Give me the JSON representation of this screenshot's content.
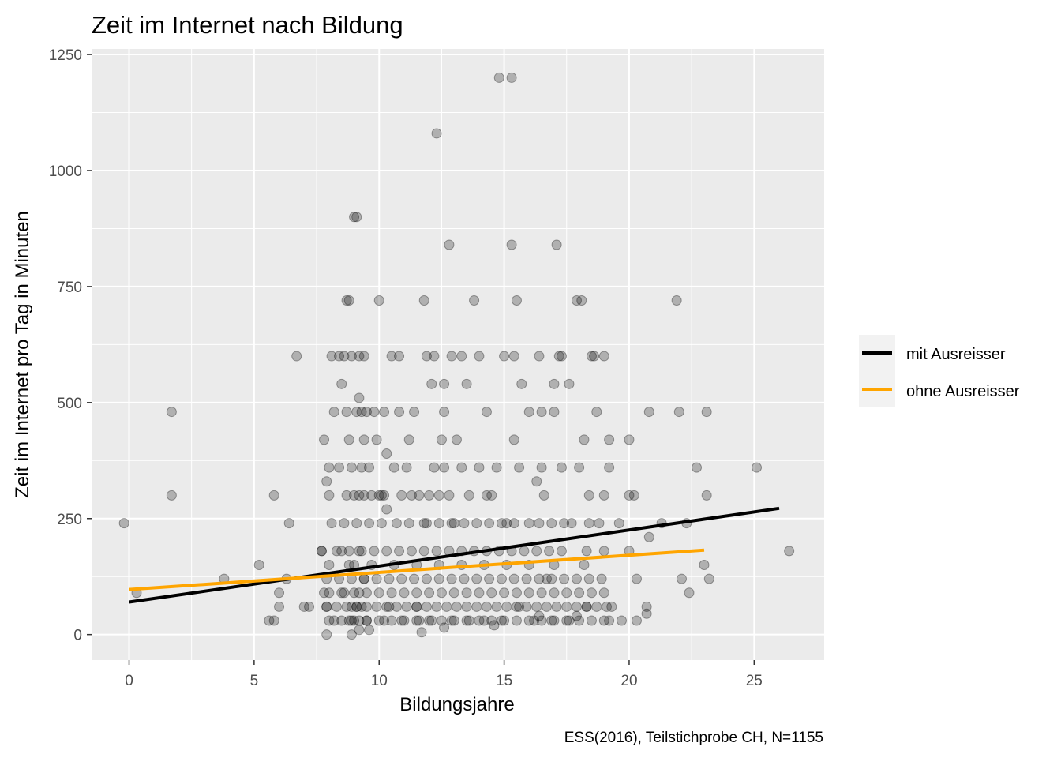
{
  "chart_data": {
    "type": "scatter",
    "title": "Zeit im Internet nach Bildung",
    "xlabel": "Bildungsjahre",
    "ylabel": "Zeit im Internet pro Tag in Minuten",
    "caption": "ESS(2016), Teilstichprobe CH, N=1155",
    "xlim": [
      -1.5,
      27.8
    ],
    "ylim": [
      -55,
      1262
    ],
    "x_ticks": [
      0,
      5,
      10,
      15,
      20,
      25
    ],
    "y_ticks": [
      0,
      250,
      500,
      750,
      1000,
      1250
    ],
    "x_tick_labels": [
      "0",
      "5",
      "10",
      "15",
      "20",
      "25"
    ],
    "y_tick_labels": [
      "0",
      "250",
      "500",
      "750",
      "1000",
      "1250"
    ],
    "grid": true,
    "legend_position": "right",
    "point_color": "#000000",
    "point_opacity": 0.25,
    "points": [
      [
        -0.2,
        240
      ],
      [
        1.7,
        480
      ],
      [
        1.7,
        300
      ],
      [
        0.3,
        90
      ],
      [
        3.8,
        120
      ],
      [
        5.2,
        150
      ],
      [
        5.8,
        300
      ],
      [
        6.4,
        240
      ],
      [
        6.7,
        600
      ],
      [
        6.3,
        120
      ],
      [
        5.6,
        30
      ],
      [
        5.8,
        30
      ],
      [
        6.0,
        90
      ],
      [
        6.0,
        60
      ],
      [
        7.0,
        60
      ],
      [
        7.2,
        60
      ],
      [
        7.7,
        180
      ],
      [
        7.8,
        420
      ],
      [
        7.9,
        330
      ],
      [
        8.0,
        300
      ],
      [
        8.0,
        360
      ],
      [
        7.8,
        90
      ],
      [
        7.9,
        60
      ],
      [
        7.9,
        0
      ],
      [
        8.2,
        480
      ],
      [
        8.4,
        360
      ],
      [
        8.5,
        180
      ],
      [
        8.5,
        540
      ],
      [
        8.6,
        600
      ],
      [
        8.7,
        720
      ],
      [
        8.8,
        720
      ],
      [
        8.9,
        600
      ],
      [
        9.0,
        900
      ],
      [
        9.1,
        900
      ],
      [
        9.2,
        510
      ],
      [
        9.2,
        600
      ],
      [
        9.4,
        600
      ],
      [
        9.5,
        480
      ],
      [
        9.8,
        480
      ],
      [
        9.9,
        420
      ],
      [
        10.0,
        720
      ],
      [
        10.1,
        300
      ],
      [
        10.3,
        390
      ],
      [
        10.3,
        270
      ],
      [
        10.4,
        60
      ],
      [
        10.5,
        600
      ],
      [
        10.8,
        480
      ],
      [
        11.2,
        420
      ],
      [
        11.5,
        60
      ],
      [
        11.8,
        720
      ],
      [
        11.9,
        600
      ],
      [
        12.1,
        540
      ],
      [
        12.2,
        600
      ],
      [
        12.3,
        1080
      ],
      [
        12.5,
        420
      ],
      [
        12.6,
        540
      ],
      [
        12.8,
        840
      ],
      [
        12.9,
        600
      ],
      [
        13.3,
        600
      ],
      [
        13.5,
        540
      ],
      [
        13.8,
        720
      ],
      [
        14.3,
        480
      ],
      [
        14.5,
        300
      ],
      [
        14.8,
        1200
      ],
      [
        15.0,
        600
      ],
      [
        15.3,
        1200
      ],
      [
        15.3,
        840
      ],
      [
        15.5,
        720
      ],
      [
        15.4,
        420
      ],
      [
        15.7,
        540
      ],
      [
        16.0,
        480
      ],
      [
        16.3,
        330
      ],
      [
        16.5,
        480
      ],
      [
        16.6,
        300
      ],
      [
        16.7,
        120
      ],
      [
        17.0,
        480
      ],
      [
        17.1,
        840
      ],
      [
        17.2,
        600
      ],
      [
        17.3,
        600
      ],
      [
        17.6,
        540
      ],
      [
        17.9,
        720
      ],
      [
        18.1,
        720
      ],
      [
        18.2,
        420
      ],
      [
        18.5,
        600
      ],
      [
        18.7,
        480
      ],
      [
        19.0,
        300
      ],
      [
        19.2,
        420
      ],
      [
        19.3,
        60
      ],
      [
        20.0,
        180
      ],
      [
        20.0,
        420
      ],
      [
        20.2,
        300
      ],
      [
        20.3,
        30
      ],
      [
        20.3,
        120
      ],
      [
        20.8,
        210
      ],
      [
        20.8,
        480
      ],
      [
        21.3,
        240
      ],
      [
        21.9,
        720
      ],
      [
        22.0,
        480
      ],
      [
        22.1,
        120
      ],
      [
        22.4,
        90
      ],
      [
        22.7,
        360
      ],
      [
        22.3,
        240
      ],
      [
        23.0,
        150
      ],
      [
        23.1,
        300
      ],
      [
        23.2,
        120
      ],
      [
        23.1,
        480
      ],
      [
        25.1,
        360
      ],
      [
        26.4,
        180
      ],
      [
        20.7,
        60
      ],
      [
        19.2,
        30
      ],
      [
        18.3,
        60
      ],
      [
        17.6,
        30
      ],
      [
        16.9,
        30
      ],
      [
        16.2,
        30
      ],
      [
        15.6,
        60
      ],
      [
        14.9,
        30
      ],
      [
        14.2,
        30
      ],
      [
        13.6,
        30
      ],
      [
        12.9,
        30
      ],
      [
        12.1,
        30
      ],
      [
        11.6,
        30
      ],
      [
        10.9,
        30
      ],
      [
        10.2,
        30
      ],
      [
        9.5,
        30
      ],
      [
        8.9,
        30
      ],
      [
        8.2,
        30
      ],
      [
        8.9,
        0
      ],
      [
        9.2,
        10
      ],
      [
        11.7,
        5
      ],
      [
        12.6,
        15
      ],
      [
        14.6,
        20
      ],
      [
        16.4,
        40
      ],
      [
        17.9,
        40
      ],
      [
        19.7,
        30
      ],
      [
        20.7,
        45
      ],
      [
        9.6,
        10
      ],
      [
        8.1,
        600
      ],
      [
        8.4,
        600
      ],
      [
        8.8,
        420
      ],
      [
        9.1,
        480
      ],
      [
        9.3,
        480
      ],
      [
        9.0,
        300
      ],
      [
        9.2,
        300
      ],
      [
        9.4,
        300
      ],
      [
        9.6,
        360
      ],
      [
        9.7,
        300
      ],
      [
        10.0,
        300
      ],
      [
        10.2,
        300
      ],
      [
        10.6,
        360
      ],
      [
        10.9,
        300
      ],
      [
        11.1,
        360
      ],
      [
        11.3,
        300
      ],
      [
        11.6,
        300
      ],
      [
        11.8,
        240
      ],
      [
        12.0,
        300
      ],
      [
        12.2,
        360
      ],
      [
        12.4,
        300
      ],
      [
        12.6,
        360
      ],
      [
        12.8,
        300
      ],
      [
        13.0,
        240
      ],
      [
        13.3,
        360
      ],
      [
        13.6,
        300
      ],
      [
        14.0,
        360
      ],
      [
        14.3,
        300
      ],
      [
        14.7,
        360
      ],
      [
        15.1,
        240
      ],
      [
        15.6,
        360
      ],
      [
        16.0,
        240
      ],
      [
        16.5,
        360
      ],
      [
        16.9,
        240
      ],
      [
        17.3,
        360
      ],
      [
        17.7,
        240
      ],
      [
        18.0,
        360
      ],
      [
        18.4,
        300
      ],
      [
        18.8,
        240
      ],
      [
        19.2,
        360
      ],
      [
        19.6,
        240
      ],
      [
        20.0,
        300
      ],
      [
        8.1,
        240
      ],
      [
        8.6,
        240
      ],
      [
        9.1,
        240
      ],
      [
        9.6,
        240
      ],
      [
        10.1,
        240
      ],
      [
        10.7,
        240
      ],
      [
        11.2,
        240
      ],
      [
        11.9,
        240
      ],
      [
        12.4,
        240
      ],
      [
        12.9,
        240
      ],
      [
        13.4,
        240
      ],
      [
        13.9,
        240
      ],
      [
        14.4,
        240
      ],
      [
        14.9,
        240
      ],
      [
        15.4,
        240
      ],
      [
        16.4,
        240
      ],
      [
        17.4,
        240
      ],
      [
        18.4,
        240
      ],
      [
        7.7,
        180
      ],
      [
        8.3,
        180
      ],
      [
        8.8,
        180
      ],
      [
        9.3,
        180
      ],
      [
        9.8,
        180
      ],
      [
        10.3,
        180
      ],
      [
        10.8,
        180
      ],
      [
        11.3,
        180
      ],
      [
        11.8,
        180
      ],
      [
        12.3,
        180
      ],
      [
        12.8,
        180
      ],
      [
        13.3,
        180
      ],
      [
        13.8,
        180
      ],
      [
        14.3,
        180
      ],
      [
        14.8,
        180
      ],
      [
        15.3,
        180
      ],
      [
        15.8,
        180
      ],
      [
        16.3,
        180
      ],
      [
        16.8,
        180
      ],
      [
        17.3,
        180
      ],
      [
        18.3,
        180
      ],
      [
        19.0,
        180
      ],
      [
        8.0,
        150
      ],
      [
        8.8,
        150
      ],
      [
        9.7,
        150
      ],
      [
        10.6,
        150
      ],
      [
        11.5,
        150
      ],
      [
        12.4,
        150
      ],
      [
        13.3,
        150
      ],
      [
        14.2,
        150
      ],
      [
        15.1,
        150
      ],
      [
        16.0,
        150
      ],
      [
        17.0,
        150
      ],
      [
        18.2,
        150
      ],
      [
        7.9,
        120
      ],
      [
        8.4,
        120
      ],
      [
        8.9,
        120
      ],
      [
        9.4,
        120
      ],
      [
        9.9,
        120
      ],
      [
        10.4,
        120
      ],
      [
        10.9,
        120
      ],
      [
        11.4,
        120
      ],
      [
        11.9,
        120
      ],
      [
        12.4,
        120
      ],
      [
        12.9,
        120
      ],
      [
        13.4,
        120
      ],
      [
        13.9,
        120
      ],
      [
        14.4,
        120
      ],
      [
        14.9,
        120
      ],
      [
        15.4,
        120
      ],
      [
        15.9,
        120
      ],
      [
        16.4,
        120
      ],
      [
        16.9,
        120
      ],
      [
        17.4,
        120
      ],
      [
        17.9,
        120
      ],
      [
        18.4,
        120
      ],
      [
        18.9,
        120
      ],
      [
        8.0,
        90
      ],
      [
        8.5,
        90
      ],
      [
        9.0,
        90
      ],
      [
        9.5,
        90
      ],
      [
        10.0,
        90
      ],
      [
        10.5,
        90
      ],
      [
        11.0,
        90
      ],
      [
        11.5,
        90
      ],
      [
        12.0,
        90
      ],
      [
        12.5,
        90
      ],
      [
        13.0,
        90
      ],
      [
        13.5,
        90
      ],
      [
        14.0,
        90
      ],
      [
        14.5,
        90
      ],
      [
        15.0,
        90
      ],
      [
        15.5,
        90
      ],
      [
        16.0,
        90
      ],
      [
        16.5,
        90
      ],
      [
        17.0,
        90
      ],
      [
        17.5,
        90
      ],
      [
        18.0,
        90
      ],
      [
        18.5,
        90
      ],
      [
        19.0,
        90
      ],
      [
        7.9,
        60
      ],
      [
        8.3,
        60
      ],
      [
        8.7,
        60
      ],
      [
        9.1,
        60
      ],
      [
        9.5,
        60
      ],
      [
        9.9,
        60
      ],
      [
        10.3,
        60
      ],
      [
        10.7,
        60
      ],
      [
        11.1,
        60
      ],
      [
        11.5,
        60
      ],
      [
        11.9,
        60
      ],
      [
        12.3,
        60
      ],
      [
        12.7,
        60
      ],
      [
        13.1,
        60
      ],
      [
        13.5,
        60
      ],
      [
        13.9,
        60
      ],
      [
        14.3,
        60
      ],
      [
        14.7,
        60
      ],
      [
        15.1,
        60
      ],
      [
        15.5,
        60
      ],
      [
        15.9,
        60
      ],
      [
        16.3,
        60
      ],
      [
        16.7,
        60
      ],
      [
        17.1,
        60
      ],
      [
        17.5,
        60
      ],
      [
        17.9,
        60
      ],
      [
        18.3,
        60
      ],
      [
        18.7,
        60
      ],
      [
        19.1,
        60
      ],
      [
        8.0,
        30
      ],
      [
        8.5,
        30
      ],
      [
        9.0,
        30
      ],
      [
        9.5,
        30
      ],
      [
        10.0,
        30
      ],
      [
        10.5,
        30
      ],
      [
        11.0,
        30
      ],
      [
        11.5,
        30
      ],
      [
        12.0,
        30
      ],
      [
        12.5,
        30
      ],
      [
        13.0,
        30
      ],
      [
        13.5,
        30
      ],
      [
        14.0,
        30
      ],
      [
        14.5,
        30
      ],
      [
        15.0,
        30
      ],
      [
        15.5,
        30
      ],
      [
        16.0,
        30
      ],
      [
        16.5,
        30
      ],
      [
        17.0,
        30
      ],
      [
        17.5,
        30
      ],
      [
        18.0,
        30
      ],
      [
        18.5,
        30
      ],
      [
        19.0,
        30
      ],
      [
        8.7,
        300
      ],
      [
        8.9,
        360
      ],
      [
        9.3,
        360
      ],
      [
        8.7,
        480
      ],
      [
        9.4,
        420
      ],
      [
        10.2,
        480
      ],
      [
        10.8,
        600
      ],
      [
        11.4,
        480
      ],
      [
        12.6,
        480
      ],
      [
        13.1,
        420
      ],
      [
        14.0,
        600
      ],
      [
        15.4,
        600
      ],
      [
        16.4,
        600
      ],
      [
        17.0,
        540
      ],
      [
        18.6,
        600
      ],
      [
        19.0,
        600
      ],
      [
        8.6,
        90
      ],
      [
        9.2,
        90
      ],
      [
        9.4,
        120
      ],
      [
        9.0,
        150
      ],
      [
        9.2,
        180
      ],
      [
        8.9,
        60
      ],
      [
        9.1,
        60
      ],
      [
        9.3,
        60
      ],
      [
        8.8,
        30
      ],
      [
        9.2,
        30
      ]
    ],
    "series": [
      {
        "name": "mit Ausreisser",
        "color": "#000000",
        "x": [
          0,
          26
        ],
        "y": [
          70,
          272
        ]
      },
      {
        "name": "ohne Ausreisser",
        "color": "#FFA500",
        "x": [
          0,
          23
        ],
        "y": [
          97,
          182
        ]
      }
    ]
  }
}
